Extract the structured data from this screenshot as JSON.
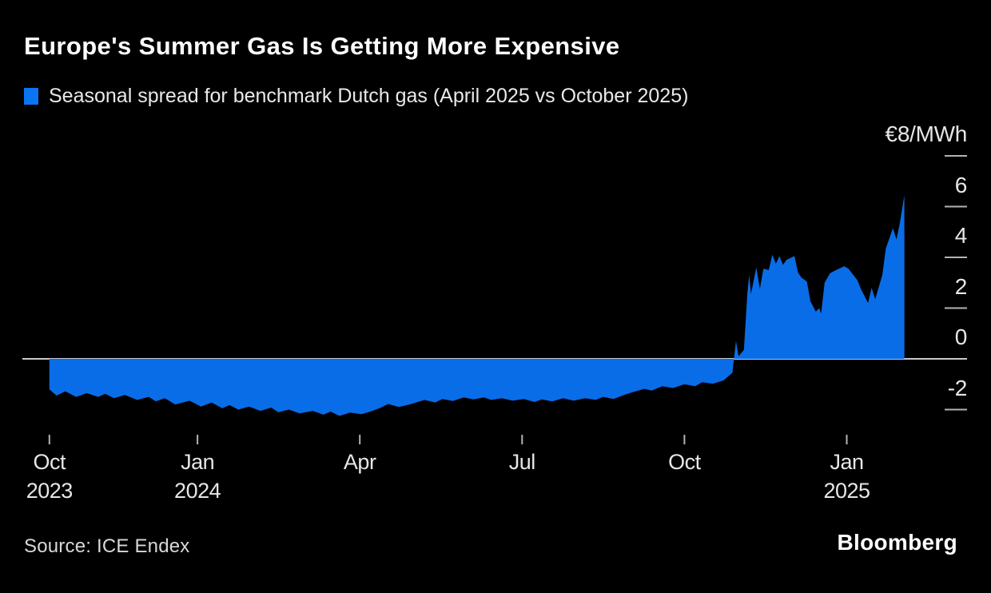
{
  "header": {
    "title": "Europe's Summer Gas Is Getting More Expensive"
  },
  "footer": {
    "source": "Source: ICE Endex",
    "brand": "Bloomberg"
  },
  "colors": {
    "background": "#000000",
    "area_blue": "#0a6de8",
    "legend_blue": "#0a74f2",
    "zero_line": "#c9c9c9",
    "tick": "#b3b3b3",
    "label_text": "#e6e6e6",
    "title_text": "#ffffff"
  },
  "chart_data": {
    "type": "area",
    "title": "Europe's Summer Gas Is Getting More Expensive",
    "series_name": "Seasonal spread for benchmark Dutch gas (April 2025 vs October 2025)",
    "unit_label": "€8/MWh",
    "ylabel": "€/MWh",
    "source": "ICE Endex",
    "grid": "zero-line-only",
    "legend_position": "top-left",
    "ylim": [
      -2.6,
      8.3
    ],
    "x_range": [
      "2023-10-09",
      "2025-02-03"
    ],
    "y_ticks": [
      {
        "value": 8,
        "label": "€8/MWh"
      },
      {
        "value": 6,
        "label": "6"
      },
      {
        "value": 4,
        "label": "4"
      },
      {
        "value": 2,
        "label": "2"
      },
      {
        "value": 0,
        "label": "0"
      },
      {
        "value": -2,
        "label": "-2"
      }
    ],
    "x_ticks": [
      {
        "date": "2023-10-09",
        "line1": "Oct",
        "line2": "2023"
      },
      {
        "date": "2024-01-01",
        "line1": "Jan",
        "line2": "2024"
      },
      {
        "date": "2024-04-01",
        "line1": "Apr",
        "line2": ""
      },
      {
        "date": "2024-07-01",
        "line1": "Jul",
        "line2": ""
      },
      {
        "date": "2024-10-01",
        "line1": "Oct",
        "line2": ""
      },
      {
        "date": "2025-01-01",
        "line1": "Jan",
        "line2": "2025"
      }
    ],
    "points": [
      [
        "2023-10-09",
        -1.2
      ],
      [
        "2023-10-13",
        -1.45
      ],
      [
        "2023-10-18",
        -1.28
      ],
      [
        "2023-10-24",
        -1.5
      ],
      [
        "2023-10-30",
        -1.35
      ],
      [
        "2023-11-06",
        -1.5
      ],
      [
        "2023-11-10",
        -1.38
      ],
      [
        "2023-11-15",
        -1.55
      ],
      [
        "2023-11-21",
        -1.42
      ],
      [
        "2023-11-28",
        -1.62
      ],
      [
        "2023-12-04",
        -1.5
      ],
      [
        "2023-12-08",
        -1.68
      ],
      [
        "2023-12-13",
        -1.55
      ],
      [
        "2023-12-19",
        -1.8
      ],
      [
        "2023-12-27",
        -1.65
      ],
      [
        "2024-01-03",
        -1.88
      ],
      [
        "2024-01-09",
        -1.72
      ],
      [
        "2024-01-15",
        -1.95
      ],
      [
        "2024-01-19",
        -1.82
      ],
      [
        "2024-01-24",
        -2.0
      ],
      [
        "2024-01-30",
        -1.88
      ],
      [
        "2024-02-06",
        -2.05
      ],
      [
        "2024-02-12",
        -1.92
      ],
      [
        "2024-02-16",
        -2.1
      ],
      [
        "2024-02-22",
        -2.0
      ],
      [
        "2024-02-28",
        -2.15
      ],
      [
        "2024-03-05",
        -2.05
      ],
      [
        "2024-03-11",
        -2.2
      ],
      [
        "2024-03-15",
        -2.08
      ],
      [
        "2024-03-20",
        -2.25
      ],
      [
        "2024-03-26",
        -2.12
      ],
      [
        "2024-04-02",
        -2.18
      ],
      [
        "2024-04-08",
        -2.05
      ],
      [
        "2024-04-12",
        -1.95
      ],
      [
        "2024-04-17",
        -1.78
      ],
      [
        "2024-04-23",
        -1.9
      ],
      [
        "2024-04-29",
        -1.8
      ],
      [
        "2024-05-07",
        -1.62
      ],
      [
        "2024-05-13",
        -1.72
      ],
      [
        "2024-05-17",
        -1.58
      ],
      [
        "2024-05-23",
        -1.66
      ],
      [
        "2024-05-29",
        -1.52
      ],
      [
        "2024-06-04",
        -1.6
      ],
      [
        "2024-06-10",
        -1.52
      ],
      [
        "2024-06-14",
        -1.62
      ],
      [
        "2024-06-20",
        -1.55
      ],
      [
        "2024-06-26",
        -1.65
      ],
      [
        "2024-07-02",
        -1.58
      ],
      [
        "2024-07-08",
        -1.7
      ],
      [
        "2024-07-12",
        -1.6
      ],
      [
        "2024-07-18",
        -1.68
      ],
      [
        "2024-07-24",
        -1.55
      ],
      [
        "2024-07-30",
        -1.65
      ],
      [
        "2024-08-06",
        -1.55
      ],
      [
        "2024-08-12",
        -1.62
      ],
      [
        "2024-08-16",
        -1.5
      ],
      [
        "2024-08-22",
        -1.58
      ],
      [
        "2024-08-28",
        -1.42
      ],
      [
        "2024-09-03",
        -1.3
      ],
      [
        "2024-09-09",
        -1.18
      ],
      [
        "2024-09-13",
        -1.25
      ],
      [
        "2024-09-19",
        -1.08
      ],
      [
        "2024-09-25",
        -1.15
      ],
      [
        "2024-10-01",
        -1.0
      ],
      [
        "2024-10-07",
        -1.08
      ],
      [
        "2024-10-11",
        -0.92
      ],
      [
        "2024-10-17",
        -0.98
      ],
      [
        "2024-10-23",
        -0.85
      ],
      [
        "2024-10-28",
        -0.55
      ],
      [
        "2024-10-30",
        0.7
      ],
      [
        "2024-11-01",
        0.1
      ],
      [
        "2024-11-04",
        0.35
      ],
      [
        "2024-11-06",
        2.6
      ],
      [
        "2024-11-07",
        3.3
      ],
      [
        "2024-11-08",
        2.55
      ],
      [
        "2024-11-11",
        3.6
      ],
      [
        "2024-11-13",
        2.75
      ],
      [
        "2024-11-15",
        3.55
      ],
      [
        "2024-11-18",
        3.5
      ],
      [
        "2024-11-20",
        4.1
      ],
      [
        "2024-11-22",
        3.75
      ],
      [
        "2024-11-24",
        4.05
      ],
      [
        "2024-11-26",
        3.7
      ],
      [
        "2024-11-28",
        3.9
      ],
      [
        "2024-12-02",
        4.05
      ],
      [
        "2024-12-04",
        3.4
      ],
      [
        "2024-12-06",
        3.2
      ],
      [
        "2024-12-09",
        3.05
      ],
      [
        "2024-12-11",
        2.27
      ],
      [
        "2024-12-14",
        1.86
      ],
      [
        "2024-12-16",
        2.0
      ],
      [
        "2024-12-17",
        1.78
      ],
      [
        "2024-12-19",
        3.0
      ],
      [
        "2024-12-22",
        3.37
      ],
      [
        "2024-12-24",
        3.45
      ],
      [
        "2024-12-30",
        3.65
      ],
      [
        "2025-01-02",
        3.55
      ],
      [
        "2025-01-07",
        3.1
      ],
      [
        "2025-01-09",
        2.75
      ],
      [
        "2025-01-13",
        2.2
      ],
      [
        "2025-01-15",
        2.8
      ],
      [
        "2025-01-17",
        2.35
      ],
      [
        "2025-01-21",
        3.3
      ],
      [
        "2025-01-23",
        4.35
      ],
      [
        "2025-01-27",
        5.15
      ],
      [
        "2025-01-29",
        4.7
      ],
      [
        "2025-01-31",
        5.4
      ],
      [
        "2025-02-03",
        6.45
      ]
    ]
  }
}
